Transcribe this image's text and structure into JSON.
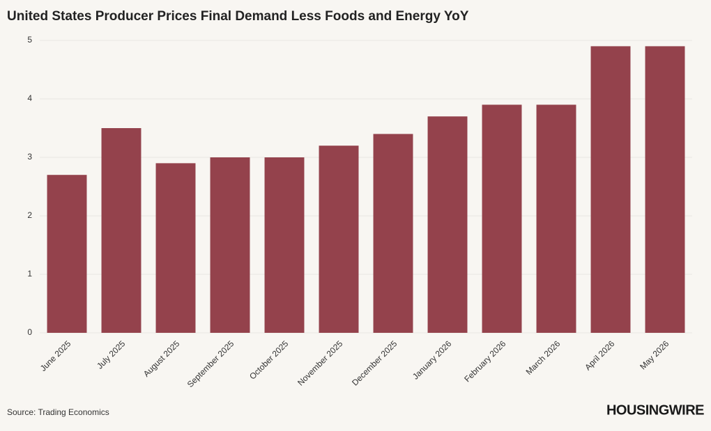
{
  "chart_data": {
    "type": "bar",
    "title": "United States Producer Prices Final Demand Less Foods and Energy YoY",
    "categories": [
      "June 2025",
      "July 2025",
      "August 2025",
      "September 2025",
      "October 2025",
      "November 2025",
      "December 2025",
      "January 2026",
      "February 2026",
      "March 2026",
      "April 2026",
      "May 2026"
    ],
    "values": [
      2.7,
      3.5,
      2.9,
      3.0,
      3.0,
      3.2,
      3.4,
      3.7,
      3.9,
      3.9,
      4.9,
      4.9
    ],
    "color": "#94424c",
    "ylim": [
      0,
      5
    ],
    "yticks": [
      0,
      1,
      2,
      3,
      4,
      5
    ],
    "grid": true,
    "source": "Source: Trading Economics",
    "brand": "HOUSINGWIRE"
  }
}
